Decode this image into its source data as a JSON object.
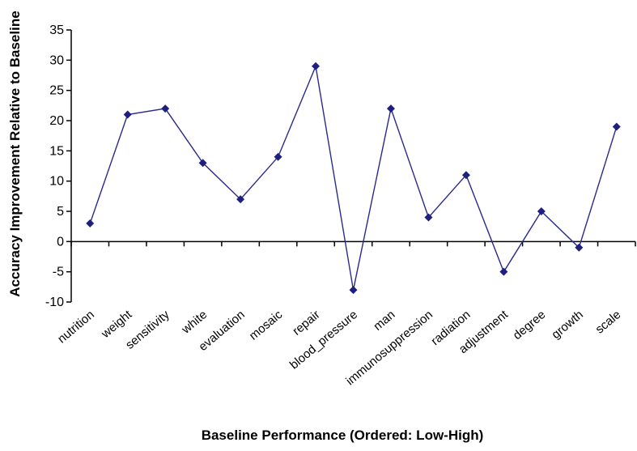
{
  "chart_data": {
    "type": "line",
    "xlabel": "Baseline Performance (Ordered: Low-High)",
    "ylabel": "Accuracy Improvement Relative to Baseline",
    "categories": [
      "nutrition",
      "weight",
      "sensitivity",
      "white",
      "evaluation",
      "mosaic",
      "repair",
      "blood_pressure",
      "man",
      "immunosuppression",
      "radiation",
      "adjustment",
      "degree",
      "growth",
      "scale"
    ],
    "series": [
      {
        "values": [
          3,
          21,
          22,
          13,
          7,
          14,
          29,
          -8,
          22,
          4,
          11,
          -5,
          5,
          -1,
          19
        ]
      }
    ],
    "ylim": [
      -10,
      35
    ],
    "yticks": [
      -10,
      -5,
      0,
      5,
      10,
      15,
      20,
      25,
      30,
      35
    ],
    "grid": false,
    "legend": "none",
    "colors": {
      "line": "#2a2a8c",
      "marker": "#1f1f80",
      "axis": "#000000"
    }
  }
}
